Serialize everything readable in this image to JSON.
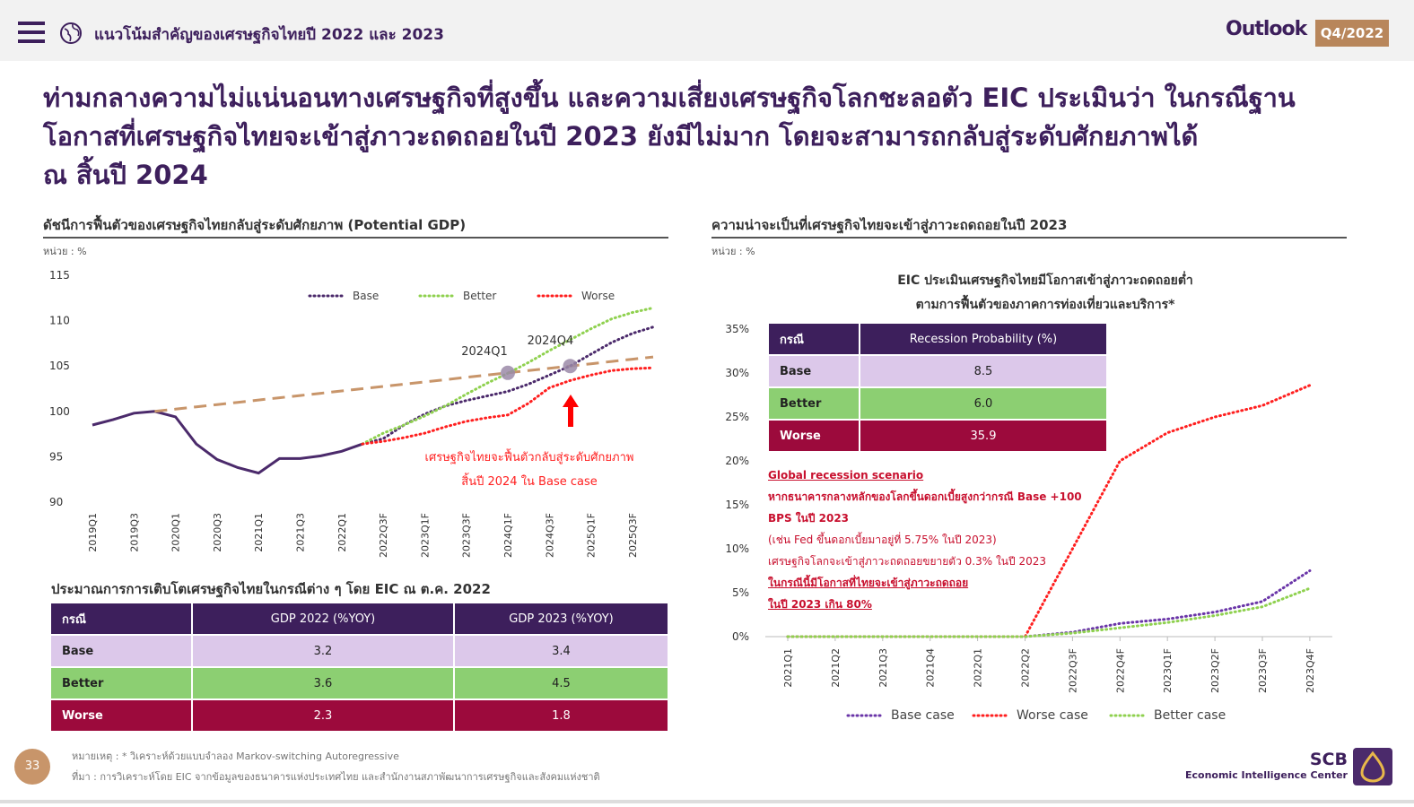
{
  "header": {
    "title": "แนวโน้มสำคัญของเศรษฐกิจไทยปี 2022 และ 2023",
    "brand": "Outlook",
    "period": "Q4/2022"
  },
  "headline": [
    "ท่ามกลางความไม่แน่นอนทางเศรษฐกิจที่สูงขึ้น และความเสี่ยงเศรษฐกิจโลกชะลอตัว EIC ประเมินว่า ในกรณีฐาน",
    "โอกาสที่เศรษฐกิจไทยจะเข้าสู่ภาวะถดถอยในปี 2023 ยังมีไม่มาก โดยจะสามารถกลับสู่ระดับศักยภาพได้",
    "ณ สิ้นปี 2024"
  ],
  "chart_data": [
    {
      "type": "line",
      "title": "ดัชนีการฟื้นตัวของเศรษฐกิจไทยกลับสู่ระดับศักยภาพ (Potential GDP)",
      "unit": "หน่วย : %",
      "categories": [
        "2019Q1",
        null,
        "2019Q3",
        null,
        "2020Q1",
        null,
        "2020Q3",
        null,
        "2021Q1",
        null,
        "2021Q3",
        null,
        "2022Q1",
        null,
        "2022Q3F",
        null,
        "2023Q1F",
        null,
        "2023Q3F",
        null,
        "2024Q1F",
        null,
        "2024Q3F",
        null,
        "2025Q1F",
        null,
        "2025Q3F",
        null
      ],
      "ylim": [
        90,
        115
      ],
      "yticks": [
        90,
        95,
        100,
        105,
        110,
        115
      ],
      "grid": false,
      "series": [
        {
          "color": "#4b2a6b",
          "style": "solid",
          "values": [
            98.5,
            99.1,
            99.8,
            100.0,
            99.4,
            96.4,
            94.7,
            93.8,
            93.2,
            94.8,
            94.8,
            95.1,
            95.6,
            96.4,
            null,
            null,
            null,
            null,
            null,
            null,
            null,
            null,
            null,
            null,
            null,
            null,
            null,
            null
          ]
        },
        {
          "color": "#c8956a",
          "style": "dashed",
          "values": [
            null,
            null,
            null,
            100.0,
            100.25,
            100.5,
            100.75,
            101.0,
            101.25,
            101.5,
            101.75,
            102.0,
            102.25,
            102.5,
            102.75,
            103.0,
            103.25,
            103.5,
            103.75,
            104.0,
            104.25,
            104.5,
            104.75,
            105.0,
            105.25,
            105.5,
            105.75,
            106.0
          ]
        },
        {
          "name": "Base",
          "color": "#4b2a6b",
          "style": "dotted",
          "values": [
            null,
            null,
            null,
            null,
            null,
            null,
            null,
            null,
            null,
            null,
            null,
            null,
            null,
            96.4,
            97.0,
            98.5,
            99.7,
            100.6,
            101.2,
            101.7,
            102.2,
            103.0,
            104.0,
            105.0,
            106.3,
            107.6,
            108.6,
            109.3
          ]
        },
        {
          "name": "Better",
          "color": "#8fd14f",
          "style": "dotted",
          "values": [
            null,
            null,
            null,
            null,
            null,
            null,
            null,
            null,
            null,
            null,
            null,
            null,
            null,
            96.4,
            97.6,
            98.5,
            99.5,
            100.6,
            101.9,
            103.1,
            104.2,
            105.4,
            106.7,
            107.9,
            109.1,
            110.2,
            110.9,
            111.4
          ]
        },
        {
          "name": "Worse",
          "color": "#ff1f1f",
          "style": "dotted",
          "values": [
            null,
            null,
            null,
            null,
            null,
            null,
            null,
            null,
            null,
            null,
            null,
            null,
            null,
            96.4,
            96.7,
            97.1,
            97.6,
            98.3,
            98.9,
            99.3,
            99.6,
            100.9,
            102.6,
            103.4,
            104.0,
            104.5,
            104.7,
            104.8
          ]
        }
      ],
      "annotations": [
        "2024Q1",
        "2024Q4",
        "เศรษฐกิจไทยจะฟื้นตัวกลับสู่ระดับศักยภาพ",
        "สิ้นปี 2024 ใน Base case"
      ]
    },
    {
      "type": "line",
      "title": "ความน่าจะเป็นที่เศรษฐกิจไทยจะเข้าสู่ภาวะถดถอยในปี 2023",
      "unit": "หน่วย : %",
      "subtitle": [
        "EIC ประเมินเศรษฐกิจไทยมีโอกาสเข้าสู่ภาวะถดถอยต่ำ",
        "ตามการฟื้นตัวของภาคการท่องเที่ยวและบริการ*"
      ],
      "categories": [
        "2021Q1",
        "2021Q2",
        "2021Q3",
        "2021Q4",
        "2022Q1",
        "2022Q2",
        "2022Q3F",
        "2022Q4F",
        "2023Q1F",
        "2023Q2F",
        "2023Q3F",
        "2023Q4F"
      ],
      "ylim": [
        0,
        35
      ],
      "yticks": [
        {
          "value": 0,
          "label": "0%"
        },
        {
          "value": 5,
          "label": "5%"
        },
        {
          "value": 10,
          "label": "10%"
        },
        {
          "value": 15,
          "label": "15%"
        },
        {
          "value": 20,
          "label": "20%"
        },
        {
          "value": 25,
          "label": "25%"
        },
        {
          "value": 30,
          "label": "30%"
        },
        {
          "value": 35,
          "label": "35%"
        }
      ],
      "grid": false,
      "series": [
        {
          "name": "Base case",
          "color": "#6a35a8",
          "style": "dotted",
          "values": [
            0,
            0,
            0,
            0,
            0,
            0,
            0.5,
            1.5,
            2.0,
            2.8,
            4.0,
            7.5
          ]
        },
        {
          "name": "Worse case",
          "color": "#ff1f1f",
          "style": "dotted",
          "values": [
            0,
            0,
            0,
            0,
            0,
            0,
            10.0,
            20.0,
            23.2,
            25.0,
            26.3,
            28.6
          ]
        },
        {
          "name": "Better case",
          "color": "#8fd14f",
          "style": "dotted",
          "values": [
            0,
            0,
            0,
            0,
            0,
            0,
            0.4,
            1.0,
            1.6,
            2.4,
            3.4,
            5.5
          ]
        }
      ],
      "annotations": [
        "Global recession scenario",
        "หากธนาคารกลางหลักของโลกขึ้นดอกเบี้ยสูงกว่ากรณี Base +100",
        "BPS ในปี 2023",
        "(เช่น Fed ขึ้นดอกเบี้ยมาอยู่ที่ 5.75% ในปี 2023)",
        "เศรษฐกิจโลกจะเข้าสู่ภาวะถดถอยขยายตัว 0.3% ในปี 2023",
        "ในกรณีนี้มีโอกาสที่ไทยจะเข้าสู่ภาวะถดถอย",
        "ในปี 2023 เกิน 80%"
      ]
    }
  ],
  "recession_table": {
    "header": [
      "กรณี",
      "Recession Probability (%)"
    ],
    "rows": [
      [
        "Base",
        "8.5"
      ],
      [
        "Better",
        "6.0"
      ],
      [
        "Worse",
        "35.9"
      ]
    ]
  },
  "gdp_table": {
    "title": "ประมาณการการเติบโตเศรษฐกิจไทยในกรณีต่าง ๆ โดย EIC ณ ต.ค. 2022",
    "header": [
      "กรณี",
      "GDP 2022 (%YOY)",
      "GDP 2023 (%YOY)"
    ],
    "rows": [
      [
        "Base",
        "3.2",
        "3.4"
      ],
      [
        "Better",
        "3.6",
        "4.5"
      ],
      [
        "Worse",
        "2.3",
        "1.8"
      ]
    ]
  },
  "footer": {
    "page": "33",
    "note": "หมายเหตุ : * วิเคราะห์ด้วยแบบจำลอง Markov-switching Autoregressive",
    "source": "ที่มา : การวิเคราะห์โดย EIC จากข้อมูลของธนาคารแห่งประเทศไทย และสำนักงานสภาพัฒนาการเศรษฐกิจและสังคมแห่งชาติ",
    "logo": "SCB",
    "logo_sub": "Economic Intelligence Center"
  }
}
